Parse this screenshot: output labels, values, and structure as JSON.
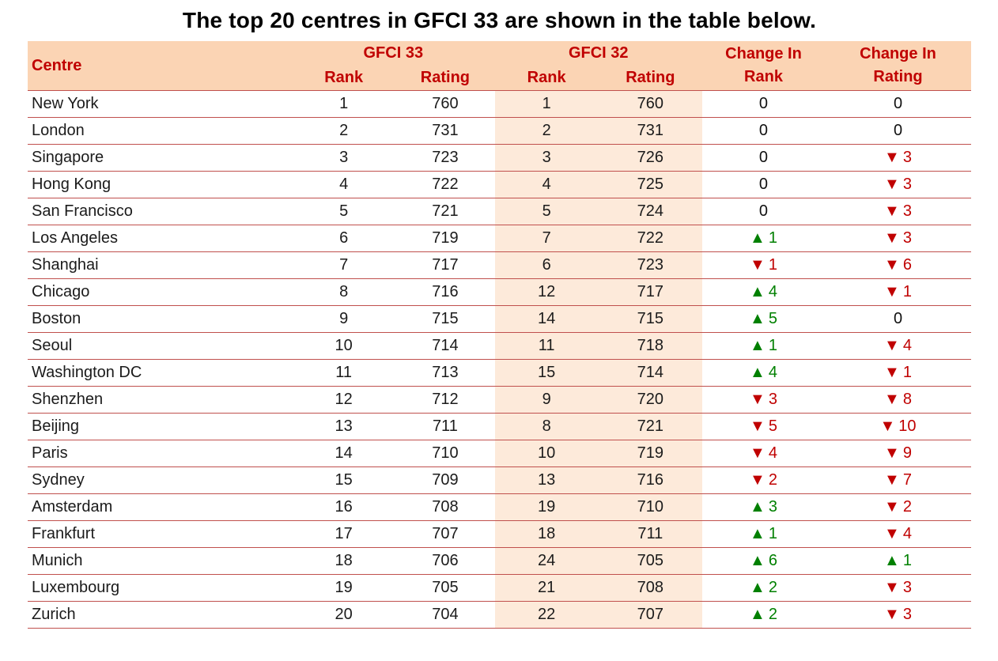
{
  "title": "The top 20 centres in GFCI 33 are shown in the table below.",
  "table": {
    "header": {
      "centre": "Centre",
      "gfci33": "GFCI 33",
      "gfci32": "GFCI 32",
      "rank": "Rank",
      "rating": "Rating",
      "change_in": "Change In"
    }
  },
  "chart_data": {
    "type": "table",
    "title": "The top 20 centres in GFCI 33 are shown in the table below.",
    "columns": [
      "Centre",
      "GFCI 33 Rank",
      "GFCI 33 Rating",
      "GFCI 32 Rank",
      "GFCI 32 Rating",
      "Change In Rank",
      "Change In Rating"
    ],
    "rows": [
      [
        "New York",
        1,
        760,
        1,
        760,
        "0",
        "0"
      ],
      [
        "London",
        2,
        731,
        2,
        731,
        "0",
        "0"
      ],
      [
        "Singapore",
        3,
        723,
        3,
        726,
        "0",
        "▼3"
      ],
      [
        "Hong Kong",
        4,
        722,
        4,
        725,
        "0",
        "▼3"
      ],
      [
        "San Francisco",
        5,
        721,
        5,
        724,
        "0",
        "▼3"
      ],
      [
        "Los Angeles",
        6,
        719,
        7,
        722,
        "▲1",
        "▼3"
      ],
      [
        "Shanghai",
        7,
        717,
        6,
        723,
        "▼1",
        "▼6"
      ],
      [
        "Chicago",
        8,
        716,
        12,
        717,
        "▲4",
        "▼1"
      ],
      [
        "Boston",
        9,
        715,
        14,
        715,
        "▲5",
        "0"
      ],
      [
        "Seoul",
        10,
        714,
        11,
        718,
        "▲1",
        "▼4"
      ],
      [
        "Washington DC",
        11,
        713,
        15,
        714,
        "▲4",
        "▼1"
      ],
      [
        "Shenzhen",
        12,
        712,
        9,
        720,
        "▼3",
        "▼8"
      ],
      [
        "Beijing",
        13,
        711,
        8,
        721,
        "▼5",
        "▼10"
      ],
      [
        "Paris",
        14,
        710,
        10,
        719,
        "▼4",
        "▼9"
      ],
      [
        "Sydney",
        15,
        709,
        13,
        716,
        "▼2",
        "▼7"
      ],
      [
        "Amsterdam",
        16,
        708,
        19,
        710,
        "▲3",
        "▼2"
      ],
      [
        "Frankfurt",
        17,
        707,
        18,
        711,
        "▲1",
        "▼4"
      ],
      [
        "Munich",
        18,
        706,
        24,
        705,
        "▲6",
        "▲1"
      ],
      [
        "Luxembourg",
        19,
        705,
        21,
        708,
        "▲2",
        "▼3"
      ],
      [
        "Zurich",
        20,
        704,
        22,
        707,
        "▲2",
        "▼3"
      ]
    ]
  },
  "colors": {
    "title_text": "#000000",
    "header_bg": "#fbd4b4",
    "header_text": "#c00000",
    "gfci32_col_bg": "#fdeada",
    "row_line": "#c0504d",
    "up_green": "#008000",
    "down_red": "#c00000"
  }
}
